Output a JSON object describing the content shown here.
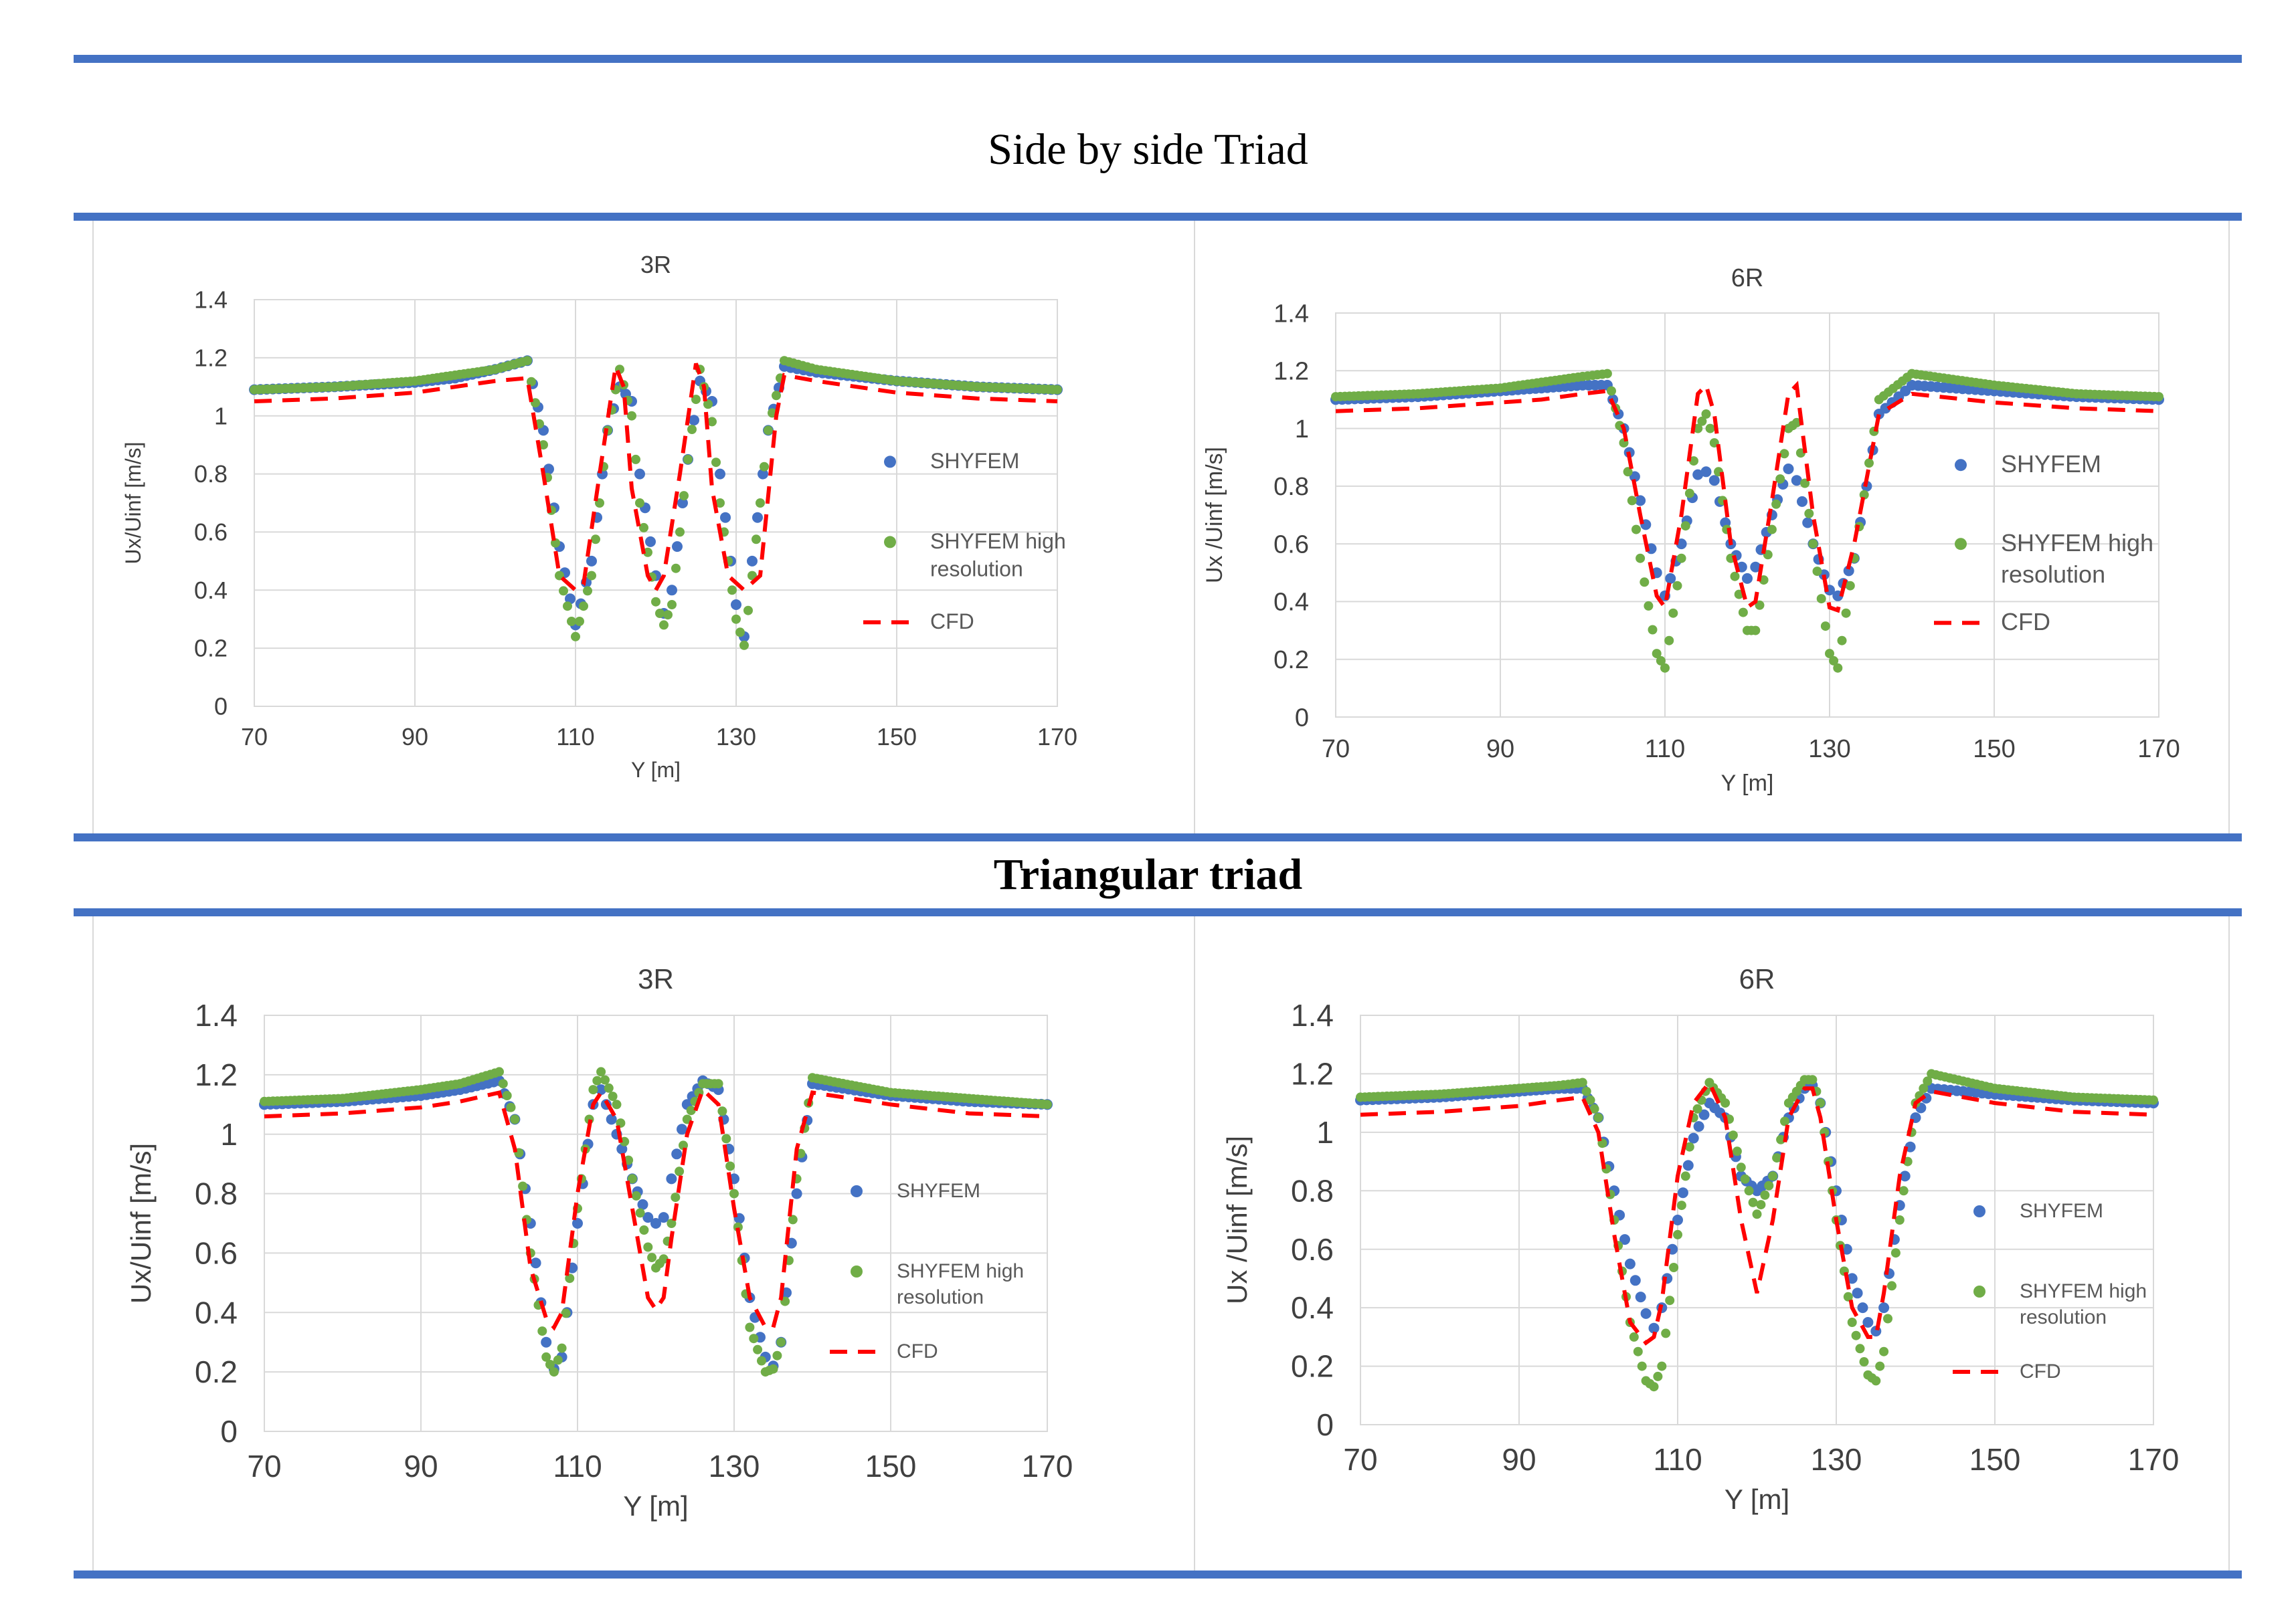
{
  "sections": [
    {
      "title": "Side by side Triad"
    },
    {
      "title": "Triangular triad"
    }
  ],
  "colors": {
    "rule": "#4472c4",
    "shyfem": "#4472c4",
    "shyfem_hr": "#70ad47",
    "cfd": "#ff0000"
  },
  "chart_data": [
    {
      "id": "sbs-3R",
      "type": "scatter",
      "title": "3R",
      "xlabel": "Y [m]",
      "ylabel": "Ux/Uinf  [m/s]",
      "xlim": [
        70,
        170
      ],
      "ylim": [
        0,
        1.4
      ],
      "xticks": [
        "70",
        "90",
        "110",
        "130",
        "150",
        "170"
      ],
      "yticks": [
        "0",
        "0.2",
        "0.4",
        "0.6",
        "0.8",
        "1",
        "1.2",
        "1.4"
      ],
      "legend": [
        "SHYFEM",
        "SHYFEM high resolution",
        "CFD"
      ],
      "series": [
        {
          "name": "SHYFEM",
          "style": "dot",
          "x": [
            70,
            80,
            90,
            95,
            100,
            104,
            106,
            108,
            110,
            112,
            114,
            115.5,
            117,
            118,
            120,
            121,
            122,
            124,
            125.5,
            127,
            128,
            130,
            131,
            132,
            134,
            136,
            140,
            150,
            160,
            170
          ],
          "y": [
            1.09,
            1.1,
            1.115,
            1.13,
            1.16,
            1.19,
            0.95,
            0.55,
            0.28,
            0.5,
            0.95,
            1.1,
            1.05,
            0.8,
            0.45,
            0.32,
            0.4,
            0.85,
            1.12,
            1.05,
            0.8,
            0.35,
            0.24,
            0.5,
            0.95,
            1.17,
            1.15,
            1.12,
            1.1,
            1.09
          ]
        },
        {
          "name": "SHYFEM high resolution",
          "style": "dot",
          "x": [
            70,
            80,
            90,
            95,
            100,
            104,
            106,
            108,
            110,
            112,
            114,
            115.5,
            117,
            118,
            120,
            121,
            122,
            124,
            125.5,
            127,
            128,
            130,
            131,
            132,
            134,
            136,
            140,
            150,
            160,
            170
          ],
          "y": [
            1.09,
            1.1,
            1.12,
            1.14,
            1.16,
            1.19,
            0.9,
            0.45,
            0.24,
            0.45,
            0.95,
            1.16,
            1.0,
            0.7,
            0.36,
            0.28,
            0.35,
            0.85,
            1.16,
            0.98,
            0.7,
            0.3,
            0.21,
            0.45,
            0.95,
            1.19,
            1.16,
            1.12,
            1.1,
            1.09
          ]
        },
        {
          "name": "CFD",
          "style": "dash",
          "x": [
            70,
            80,
            90,
            95,
            100,
            104,
            106,
            108,
            110,
            111,
            113,
            115,
            116,
            117,
            119,
            120,
            121,
            123,
            125,
            126,
            127,
            129,
            131,
            133,
            135,
            136,
            140,
            150,
            160,
            170
          ],
          "y": [
            1.05,
            1.06,
            1.08,
            1.1,
            1.12,
            1.13,
            0.8,
            0.45,
            0.4,
            0.42,
            0.8,
            1.17,
            1.1,
            0.75,
            0.45,
            0.4,
            0.45,
            0.8,
            1.18,
            1.1,
            0.75,
            0.45,
            0.4,
            0.45,
            1.0,
            1.14,
            1.12,
            1.08,
            1.06,
            1.05
          ]
        }
      ]
    },
    {
      "id": "sbs-6R",
      "type": "scatter",
      "title": "6R",
      "xlabel": "Y [m]",
      "ylabel": "Ux /Uinf [m/s]",
      "xlim": [
        70,
        170
      ],
      "ylim": [
        0,
        1.4
      ],
      "xticks": [
        "70",
        "90",
        "110",
        "130",
        "150",
        "170"
      ],
      "yticks": [
        "0",
        "0.2",
        "0.4",
        "0.6",
        "0.8",
        "1",
        "1.2",
        "1.4"
      ],
      "legend": [
        "SHYFEM",
        "SHYFEM high resolution",
        "CFD"
      ],
      "series": [
        {
          "name": "SHYFEM",
          "style": "dot",
          "x": [
            70,
            80,
            90,
            95,
            100,
            103,
            105,
            107,
            109,
            110,
            112,
            114,
            115,
            116,
            118,
            120,
            121,
            123,
            125,
            126,
            128,
            130,
            131,
            133,
            136,
            140,
            150,
            160,
            170
          ],
          "y": [
            1.1,
            1.11,
            1.13,
            1.14,
            1.15,
            1.15,
            1.0,
            0.75,
            0.5,
            0.42,
            0.6,
            0.84,
            0.85,
            0.82,
            0.6,
            0.48,
            0.52,
            0.7,
            0.86,
            0.82,
            0.6,
            0.44,
            0.42,
            0.55,
            1.05,
            1.15,
            1.13,
            1.11,
            1.1
          ]
        },
        {
          "name": "SHYFEM high resolution",
          "style": "dot",
          "x": [
            70,
            80,
            90,
            95,
            100,
            103,
            105,
            107,
            109,
            110,
            112,
            114,
            115,
            116,
            118,
            120,
            121,
            123,
            125,
            126,
            128,
            130,
            131,
            133,
            136,
            140,
            150,
            160,
            170
          ],
          "y": [
            1.11,
            1.12,
            1.14,
            1.16,
            1.18,
            1.19,
            0.95,
            0.55,
            0.22,
            0.17,
            0.55,
            1.0,
            1.05,
            0.95,
            0.55,
            0.3,
            0.3,
            0.65,
            1.0,
            1.02,
            0.6,
            0.22,
            0.17,
            0.55,
            1.1,
            1.19,
            1.15,
            1.12,
            1.11
          ]
        },
        {
          "name": "CFD",
          "style": "dash",
          "x": [
            70,
            80,
            90,
            95,
            100,
            103,
            105,
            107,
            109,
            110,
            112,
            114,
            115,
            116,
            118,
            120,
            121,
            123,
            125,
            126,
            128,
            130,
            131,
            133,
            136,
            140,
            150,
            160,
            170
          ],
          "y": [
            1.06,
            1.07,
            1.09,
            1.1,
            1.12,
            1.13,
            1.0,
            0.7,
            0.42,
            0.38,
            0.7,
            1.12,
            1.15,
            1.05,
            0.6,
            0.38,
            0.4,
            0.75,
            1.12,
            1.15,
            0.7,
            0.38,
            0.37,
            0.6,
            1.05,
            1.12,
            1.09,
            1.07,
            1.06
          ]
        }
      ]
    },
    {
      "id": "tri-3R",
      "type": "scatter",
      "title": "3R",
      "xlabel": "Y [m]",
      "ylabel": "Ux/Uinf [m/s]",
      "xlim": [
        70,
        170
      ],
      "ylim": [
        0,
        1.4
      ],
      "xticks": [
        "70",
        "90",
        "110",
        "130",
        "150",
        "170"
      ],
      "yticks": [
        "0",
        "0.2",
        "0.4",
        "0.6",
        "0.8",
        "1",
        "1.2",
        "1.4"
      ],
      "legend": [
        "SHYFEM",
        "SHYFEM high resolution",
        "CFD"
      ],
      "series": [
        {
          "name": "SHYFEM",
          "style": "dot",
          "x": [
            70,
            80,
            90,
            95,
            100,
            102,
            104,
            106,
            107,
            108,
            110,
            112,
            113,
            115,
            117,
            119,
            120,
            121,
            122,
            124,
            126,
            128,
            130,
            132,
            134,
            135,
            136,
            138,
            140,
            150,
            160,
            170
          ],
          "y": [
            1.1,
            1.11,
            1.13,
            1.15,
            1.18,
            1.05,
            0.7,
            0.3,
            0.21,
            0.25,
            0.7,
            1.1,
            1.15,
            1.0,
            0.85,
            0.72,
            0.7,
            0.72,
            0.85,
            1.1,
            1.18,
            1.15,
            0.85,
            0.45,
            0.25,
            0.22,
            0.3,
            0.8,
            1.17,
            1.13,
            1.11,
            1.1
          ]
        },
        {
          "name": "SHYFEM high resolution",
          "style": "dot",
          "x": [
            70,
            80,
            90,
            95,
            100,
            102,
            104,
            106,
            107,
            108,
            110,
            112,
            113,
            115,
            117,
            119,
            120,
            121,
            122,
            124,
            126,
            128,
            130,
            132,
            134,
            135,
            136,
            138,
            140,
            150,
            160,
            170
          ],
          "y": [
            1.11,
            1.12,
            1.15,
            1.17,
            1.21,
            1.05,
            0.6,
            0.25,
            0.2,
            0.28,
            0.75,
            1.15,
            1.21,
            1.1,
            0.85,
            0.62,
            0.55,
            0.58,
            0.7,
            1.05,
            1.17,
            1.17,
            0.8,
            0.35,
            0.2,
            0.21,
            0.3,
            0.85,
            1.19,
            1.14,
            1.12,
            1.1
          ]
        },
        {
          "name": "CFD",
          "style": "dash",
          "x": [
            70,
            80,
            90,
            95,
            100,
            102,
            104,
            106,
            107,
            108,
            110,
            112,
            113,
            115,
            117,
            119,
            120,
            121,
            122,
            124,
            126,
            128,
            130,
            132,
            134,
            135,
            136,
            138,
            140,
            150,
            160,
            170
          ],
          "y": [
            1.06,
            1.07,
            1.09,
            1.11,
            1.14,
            0.95,
            0.55,
            0.38,
            0.35,
            0.4,
            0.8,
            1.1,
            1.14,
            1.05,
            0.75,
            0.45,
            0.41,
            0.45,
            0.65,
            1.0,
            1.15,
            1.1,
            0.75,
            0.45,
            0.35,
            0.35,
            0.45,
            0.95,
            1.14,
            1.1,
            1.07,
            1.06
          ]
        }
      ]
    },
    {
      "id": "tri-6R",
      "type": "scatter",
      "title": "6R",
      "xlabel": "Y [m]",
      "ylabel": "Ux /Uinf [m/s]",
      "xlim": [
        70,
        170
      ],
      "ylim": [
        0,
        1.4
      ],
      "xticks": [
        "70",
        "90",
        "110",
        "130",
        "150",
        "170"
      ],
      "yticks": [
        "0",
        "0.2",
        "0.4",
        "0.6",
        "0.8",
        "1",
        "1.2",
        "1.4"
      ],
      "legend": [
        "SHYFEM",
        "SHYFEM high resolution",
        "CFD"
      ],
      "series": [
        {
          "name": "SHYFEM",
          "style": "dot",
          "x": [
            70,
            80,
            90,
            95,
            98,
            100,
            102,
            104,
            106,
            107,
            108,
            110,
            112,
            114,
            116,
            118,
            120,
            122,
            124,
            126,
            127,
            128,
            130,
            132,
            134,
            135,
            136,
            138,
            140,
            142,
            150,
            160,
            170
          ],
          "y": [
            1.11,
            1.12,
            1.14,
            1.15,
            1.15,
            1.05,
            0.8,
            0.55,
            0.38,
            0.33,
            0.4,
            0.7,
            0.98,
            1.1,
            1.05,
            0.85,
            0.8,
            0.85,
            1.05,
            1.15,
            1.16,
            1.1,
            0.8,
            0.5,
            0.35,
            0.32,
            0.4,
            0.75,
            1.05,
            1.15,
            1.13,
            1.11,
            1.1
          ]
        },
        {
          "name": "SHYFEM high resolution",
          "style": "dot",
          "x": [
            70,
            80,
            90,
            95,
            98,
            100,
            102,
            104,
            106,
            107,
            108,
            110,
            112,
            114,
            116,
            118,
            120,
            122,
            124,
            126,
            127,
            128,
            130,
            132,
            134,
            135,
            136,
            138,
            140,
            142,
            150,
            160,
            170
          ],
          "y": [
            1.12,
            1.13,
            1.15,
            1.16,
            1.17,
            1.05,
            0.7,
            0.35,
            0.15,
            0.13,
            0.2,
            0.65,
            1.05,
            1.17,
            1.1,
            0.88,
            0.72,
            0.85,
            1.1,
            1.18,
            1.18,
            1.1,
            0.7,
            0.35,
            0.17,
            0.15,
            0.25,
            0.7,
            1.1,
            1.2,
            1.15,
            1.12,
            1.11
          ]
        },
        {
          "name": "CFD",
          "style": "dash",
          "x": [
            70,
            80,
            90,
            95,
            98,
            100,
            102,
            104,
            106,
            107,
            108,
            110,
            112,
            114,
            116,
            118,
            120,
            122,
            124,
            126,
            127,
            128,
            130,
            132,
            134,
            135,
            136,
            138,
            140,
            142,
            150,
            160,
            170
          ],
          "y": [
            1.06,
            1.07,
            1.09,
            1.11,
            1.12,
            1.0,
            0.65,
            0.35,
            0.28,
            0.3,
            0.42,
            0.85,
            1.1,
            1.17,
            1.05,
            0.7,
            0.45,
            0.7,
            1.05,
            1.15,
            1.15,
            1.05,
            0.7,
            0.4,
            0.3,
            0.3,
            0.45,
            0.85,
            1.1,
            1.14,
            1.1,
            1.07,
            1.06
          ]
        }
      ]
    }
  ]
}
